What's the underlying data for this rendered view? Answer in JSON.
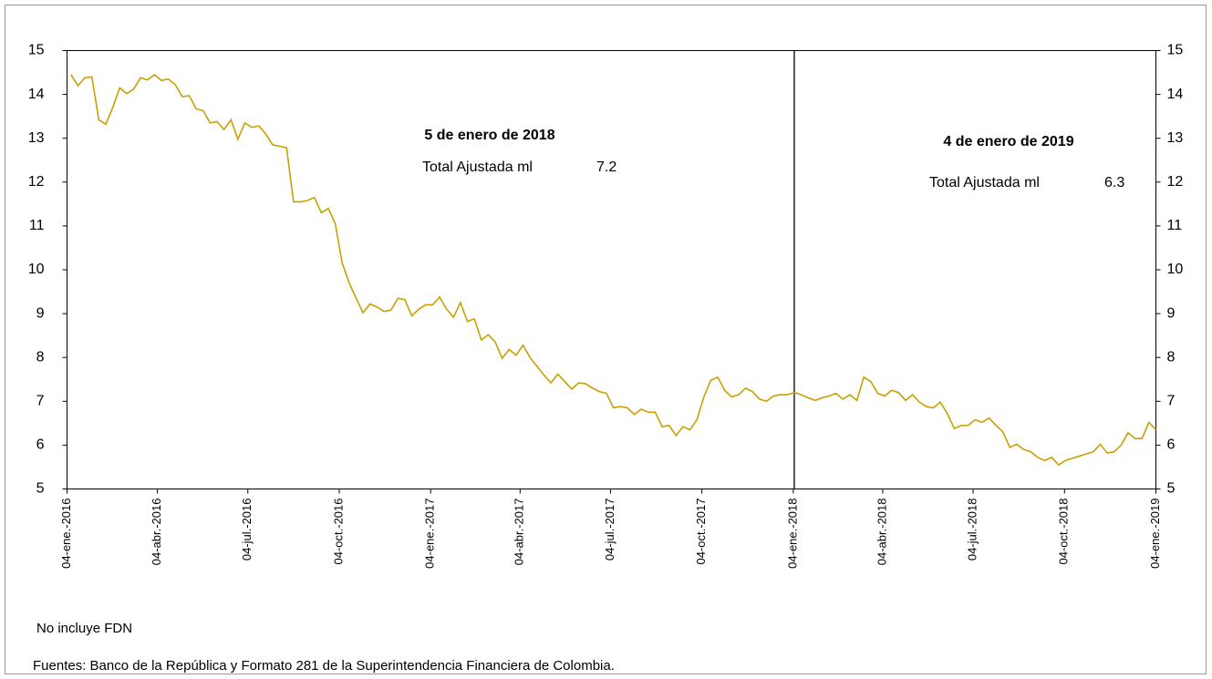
{
  "chart_data": {
    "type": "line",
    "x": [
      "2016-01-08",
      "2016-01-15",
      "2016-01-22",
      "2016-01-29",
      "2016-02-05",
      "2016-02-12",
      "2016-02-19",
      "2016-02-26",
      "2016-03-04",
      "2016-03-11",
      "2016-03-18",
      "2016-03-25",
      "2016-04-01",
      "2016-04-08",
      "2016-04-15",
      "2016-04-22",
      "2016-04-29",
      "2016-05-06",
      "2016-05-13",
      "2016-05-20",
      "2016-05-27",
      "2016-06-03",
      "2016-06-10",
      "2016-06-17",
      "2016-06-24",
      "2016-07-01",
      "2016-07-08",
      "2016-07-15",
      "2016-07-22",
      "2016-07-29",
      "2016-08-05",
      "2016-08-12",
      "2016-08-19",
      "2016-08-26",
      "2016-09-02",
      "2016-09-09",
      "2016-09-16",
      "2016-09-23",
      "2016-09-30",
      "2016-10-07",
      "2016-10-14",
      "2016-10-21",
      "2016-10-28",
      "2016-11-04",
      "2016-11-11",
      "2016-11-18",
      "2016-11-25",
      "2016-12-02",
      "2016-12-09",
      "2016-12-16",
      "2016-12-23",
      "2016-12-30",
      "2017-01-06",
      "2017-01-13",
      "2017-01-20",
      "2017-01-27",
      "2017-02-03",
      "2017-02-10",
      "2017-02-17",
      "2017-02-24",
      "2017-03-03",
      "2017-03-10",
      "2017-03-17",
      "2017-03-24",
      "2017-03-31",
      "2017-04-07",
      "2017-04-14",
      "2017-04-21",
      "2017-04-28",
      "2017-05-05",
      "2017-05-12",
      "2017-05-19",
      "2017-05-26",
      "2017-06-02",
      "2017-06-09",
      "2017-06-16",
      "2017-06-23",
      "2017-06-30",
      "2017-07-07",
      "2017-07-14",
      "2017-07-21",
      "2017-07-28",
      "2017-08-04",
      "2017-08-11",
      "2017-08-18",
      "2017-08-25",
      "2017-09-01",
      "2017-09-08",
      "2017-09-15",
      "2017-09-22",
      "2017-09-29",
      "2017-10-06",
      "2017-10-13",
      "2017-10-20",
      "2017-10-27",
      "2017-11-03",
      "2017-11-10",
      "2017-11-17",
      "2017-11-24",
      "2017-12-01",
      "2017-12-08",
      "2017-12-15",
      "2017-12-22",
      "2017-12-29",
      "2018-01-05",
      "2018-01-12",
      "2018-01-19",
      "2018-01-26",
      "2018-02-02",
      "2018-02-09",
      "2018-02-16",
      "2018-02-23",
      "2018-03-02",
      "2018-03-09",
      "2018-03-16",
      "2018-03-23",
      "2018-03-30",
      "2018-04-06",
      "2018-04-13",
      "2018-04-20",
      "2018-04-27",
      "2018-05-04",
      "2018-05-11",
      "2018-05-18",
      "2018-05-25",
      "2018-06-01",
      "2018-06-08",
      "2018-06-15",
      "2018-06-22",
      "2018-06-29",
      "2018-07-06",
      "2018-07-13",
      "2018-07-20",
      "2018-07-27",
      "2018-08-03",
      "2018-08-10",
      "2018-08-17",
      "2018-08-24",
      "2018-08-31",
      "2018-09-07",
      "2018-09-14",
      "2018-09-21",
      "2018-09-28",
      "2018-10-05",
      "2018-10-12",
      "2018-10-19",
      "2018-10-26",
      "2018-11-02",
      "2018-11-09",
      "2018-11-16",
      "2018-11-23",
      "2018-11-30",
      "2018-12-07",
      "2018-12-14",
      "2018-12-21",
      "2018-12-28",
      "2019-01-04"
    ],
    "series": [
      {
        "color": "#c9a000",
        "values": [
          14.45,
          14.2,
          14.38,
          14.4,
          13.42,
          13.32,
          13.7,
          14.15,
          14.02,
          14.12,
          14.38,
          14.33,
          14.45,
          14.32,
          14.35,
          14.22,
          13.95,
          13.97,
          13.67,
          13.63,
          13.35,
          13.38,
          13.2,
          13.42,
          12.98,
          13.35,
          13.25,
          13.28,
          13.1,
          12.85,
          12.82,
          12.78,
          11.55,
          11.55,
          11.58,
          11.65,
          11.3,
          11.4,
          11.05,
          10.15,
          9.7,
          9.35,
          9.02,
          9.22,
          9.15,
          9.05,
          9.08,
          9.35,
          9.32,
          8.95,
          9.1,
          9.2,
          9.2,
          9.38,
          9.1,
          8.92,
          9.25,
          8.82,
          8.88,
          8.4,
          8.52,
          8.35,
          7.98,
          8.18,
          8.05,
          8.28,
          8.0,
          7.8,
          7.6,
          7.42,
          7.62,
          7.45,
          7.28,
          7.42,
          7.4,
          7.3,
          7.22,
          7.18,
          6.85,
          6.88,
          6.85,
          6.7,
          6.82,
          6.75,
          6.75,
          6.42,
          6.45,
          6.22,
          6.42,
          6.35,
          6.58,
          7.1,
          7.48,
          7.55,
          7.25,
          7.1,
          7.15,
          7.3,
          7.22,
          7.05,
          7.0,
          7.12,
          7.15,
          7.15,
          7.2,
          7.15,
          7.08,
          7.02,
          7.08,
          7.12,
          7.18,
          7.05,
          7.15,
          7.02,
          7.55,
          7.45,
          7.18,
          7.12,
          7.25,
          7.2,
          7.02,
          7.15,
          6.98,
          6.88,
          6.85,
          6.98,
          6.72,
          6.38,
          6.45,
          6.45,
          6.58,
          6.52,
          6.62,
          6.45,
          6.3,
          5.95,
          6.02,
          5.9,
          5.85,
          5.72,
          5.65,
          5.72,
          5.55,
          5.65,
          5.7,
          5.75,
          5.8,
          5.85,
          6.02,
          5.82,
          5.85,
          6.0,
          6.28,
          6.15,
          6.15,
          6.52,
          6.35
        ]
      }
    ],
    "xlim": [
      "2016-01-04",
      "2019-01-04"
    ],
    "xticks": [
      {
        "value": "2016-01-04",
        "label": "04-ene.-2016"
      },
      {
        "value": "2016-04-04",
        "label": "04-abr.-2016"
      },
      {
        "value": "2016-07-04",
        "label": "04-jul.-2016"
      },
      {
        "value": "2016-10-04",
        "label": "04-oct.-2016"
      },
      {
        "value": "2017-01-04",
        "label": "04-ene.-2017"
      },
      {
        "value": "2017-04-04",
        "label": "04-abr.-2017"
      },
      {
        "value": "2017-07-04",
        "label": "04-jul.-2017"
      },
      {
        "value": "2017-10-04",
        "label": "04-oct.-2017"
      },
      {
        "value": "2018-01-04",
        "label": "04-ene.-2018"
      },
      {
        "value": "2018-04-04",
        "label": "04-abr.-2018"
      },
      {
        "value": "2018-07-04",
        "label": "04-jul.-2018"
      },
      {
        "value": "2018-10-04",
        "label": "04-oct.-2018"
      },
      {
        "value": "2019-01-04",
        "label": "04-ene.-2019"
      }
    ],
    "ylim": [
      5,
      15
    ],
    "yticks": [
      5,
      6,
      7,
      8,
      9,
      10,
      11,
      12,
      13,
      14,
      15
    ],
    "y2lim": [
      5,
      15
    ],
    "y2ticks": [
      5,
      6,
      7,
      8,
      9,
      10,
      11,
      12,
      13,
      14,
      15
    ],
    "reference_line": "2018-01-05",
    "annotations": [
      {
        "date": "5 de enero de 2018",
        "label": "Total Ajustada ml",
        "value": 7.2
      },
      {
        "date": "4 de enero de 2019",
        "label": "Total Ajustada ml",
        "value": 6.3
      }
    ],
    "notes": [
      "No incluye FDN",
      "Fuentes: Banco de la República y Formato 281 de la Superintendencia Financiera de Colombia."
    ]
  }
}
